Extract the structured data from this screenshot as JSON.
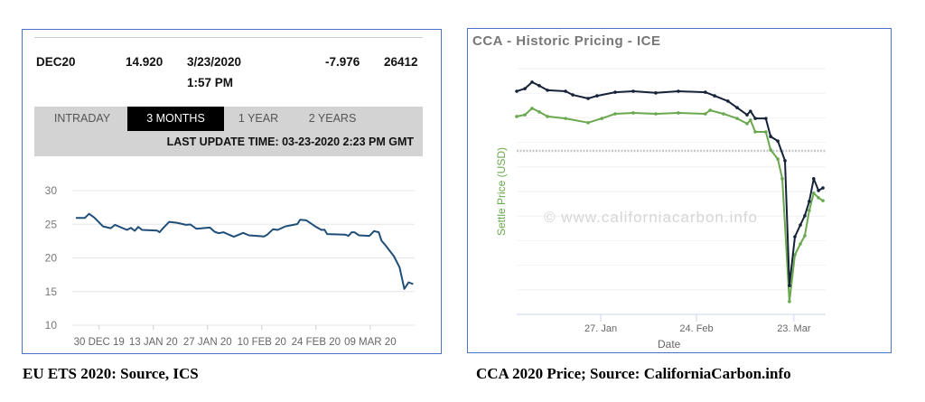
{
  "eu_panel": {
    "quote": {
      "contract": "DEC20",
      "price": "14.920",
      "date": "3/23/2020",
      "time": "1:57 PM",
      "change": "-7.976",
      "volume": "26412"
    },
    "tabs": [
      {
        "label": "INTRADAY",
        "active": false
      },
      {
        "label": "3 MONTHS",
        "active": true
      },
      {
        "label": "1 YEAR",
        "active": false
      },
      {
        "label": "2 YEARS",
        "active": false
      }
    ],
    "last_update": "LAST UPDATE TIME: 03-23-2020 2:23 PM GMT"
  },
  "cca_panel": {
    "title": "CCA - Historic Pricing - ICE",
    "watermark": "© www.californiacarbon.info"
  },
  "captions": {
    "left": "EU ETS 2020: Source, ICS",
    "right": "CCA 2020 Price; Source: CaliforniaCarbon.info"
  },
  "colors": {
    "eu_line": "#1f4e79",
    "cca_dark": "#152238",
    "cca_green": "#6aa84f",
    "border": "#4a72c8"
  },
  "chart_data": [
    {
      "type": "line",
      "title": "",
      "xlabel": "",
      "ylabel": "",
      "x_unit": "days since 30 Dec 2019",
      "ylim": [
        10,
        30
      ],
      "yticks": [
        30,
        25,
        20,
        15,
        10
      ],
      "grid": true,
      "xticks": [
        {
          "day": 0,
          "label": "30 DEC 19"
        },
        {
          "day": 14,
          "label": "13 JAN 20"
        },
        {
          "day": 28,
          "label": "27 JAN 20"
        },
        {
          "day": 42,
          "label": "10 FEB 20"
        },
        {
          "day": 56,
          "label": "24 FEB 20"
        },
        {
          "day": 70,
          "label": "09 MAR 20"
        }
      ],
      "xlim": [
        -6,
        81
      ],
      "series": [
        {
          "name": "DEC20",
          "points": [
            [
              -6,
              25.93
            ],
            [
              -3.7,
              25.93
            ],
            [
              -2.6,
              26.55
            ],
            [
              -1.3,
              26.02
            ],
            [
              1,
              24.69
            ],
            [
              3,
              24.42
            ],
            [
              4.1,
              24.91
            ],
            [
              7.2,
              24.16
            ],
            [
              8.2,
              24.47
            ],
            [
              9.2,
              24.03
            ],
            [
              10.1,
              24.6
            ],
            [
              11.1,
              24.16
            ],
            [
              15,
              24.07
            ],
            [
              15.6,
              23.81
            ],
            [
              16.6,
              24.47
            ],
            [
              18.1,
              25.35
            ],
            [
              20.1,
              25.22
            ],
            [
              22.4,
              24.91
            ],
            [
              23.6,
              24.96
            ],
            [
              25.1,
              24.34
            ],
            [
              28.6,
              24.51
            ],
            [
              29.8,
              23.89
            ],
            [
              30.9,
              23.67
            ],
            [
              32.1,
              23.81
            ],
            [
              34.8,
              23.14
            ],
            [
              37.2,
              23.72
            ],
            [
              38.7,
              23.36
            ],
            [
              42.6,
              23.19
            ],
            [
              43.4,
              23.45
            ],
            [
              44.9,
              24.25
            ],
            [
              46.1,
              24.16
            ],
            [
              48.1,
              24.69
            ],
            [
              51.2,
              25.04
            ],
            [
              51.9,
              25.66
            ],
            [
              53.5,
              25.58
            ],
            [
              55.8,
              24.69
            ],
            [
              57.4,
              24.16
            ],
            [
              58.2,
              24.2
            ],
            [
              58.9,
              23.54
            ],
            [
              63.6,
              23.45
            ],
            [
              64.4,
              23.27
            ],
            [
              65.2,
              23.81
            ],
            [
              65.9,
              23.81
            ],
            [
              67.1,
              23.36
            ],
            [
              69.8,
              23.27
            ],
            [
              71,
              23.98
            ],
            [
              72.2,
              23.81
            ],
            [
              72.9,
              22.57
            ],
            [
              73.7,
              22.04
            ],
            [
              76.1,
              20.27
            ],
            [
              77.6,
              18.58
            ],
            [
              78.8,
              15.4
            ],
            [
              79.9,
              16.37
            ],
            [
              81.1,
              16.11
            ]
          ]
        }
      ]
    },
    {
      "type": "line",
      "title": "CCA - Historic Pricing - ICE",
      "xlabel": "Date",
      "ylabel": "Settle Price (USD)",
      "x_unit": "day of year 2020 (Jan 1 = 0)",
      "ylim": [
        12,
        19.5
      ],
      "grid": true,
      "xticks": [
        {
          "day": 26,
          "label": "27. Jan"
        },
        {
          "day": 54,
          "label": "24. Feb"
        },
        {
          "day": 82.5,
          "label": "23. Mar"
        }
      ],
      "xlim": [
        1.4,
        91
      ],
      "reference_line": 16.99,
      "series": [
        {
          "name": "dark",
          "points": [
            [
              1.4,
              18.81
            ],
            [
              3.8,
              18.89
            ],
            [
              5.9,
              19.09
            ],
            [
              8,
              18.98
            ],
            [
              10.4,
              18.84
            ],
            [
              15.7,
              18.81
            ],
            [
              17.8,
              18.7
            ],
            [
              22.3,
              18.59
            ],
            [
              24.9,
              18.67
            ],
            [
              30.2,
              18.78
            ],
            [
              35.5,
              18.81
            ],
            [
              42.1,
              18.76
            ],
            [
              48.7,
              18.81
            ],
            [
              56.6,
              18.78
            ],
            [
              59.3,
              18.67
            ],
            [
              63.2,
              18.51
            ],
            [
              65.9,
              18.31
            ],
            [
              68.8,
              18.09
            ],
            [
              69.8,
              18.2
            ],
            [
              71.2,
              17.98
            ],
            [
              74.3,
              17.98
            ],
            [
              75.7,
              17.43
            ],
            [
              77.8,
              17.29
            ],
            [
              79.9,
              16.69
            ],
            [
              81.2,
              12.88
            ],
            [
              82.8,
              14.37
            ],
            [
              84.4,
              14.73
            ],
            [
              85.7,
              15.01
            ],
            [
              87,
              15.45
            ],
            [
              88.3,
              16.14
            ],
            [
              89.7,
              15.78
            ],
            [
              91,
              15.86
            ]
          ]
        },
        {
          "name": "green",
          "points": [
            [
              1.4,
              18.04
            ],
            [
              3.8,
              18.09
            ],
            [
              5.9,
              18.29
            ],
            [
              8,
              18.18
            ],
            [
              10.4,
              18.04
            ],
            [
              15.7,
              17.98
            ],
            [
              22.3,
              17.85
            ],
            [
              26.3,
              17.98
            ],
            [
              30.2,
              18.12
            ],
            [
              35.5,
              18.15
            ],
            [
              42.1,
              18.12
            ],
            [
              48.7,
              18.15
            ],
            [
              56.6,
              18.12
            ],
            [
              58,
              18.23
            ],
            [
              61.9,
              18.12
            ],
            [
              65.9,
              17.98
            ],
            [
              68.8,
              17.82
            ],
            [
              69.8,
              17.93
            ],
            [
              71.2,
              17.57
            ],
            [
              74.3,
              17.57
            ],
            [
              75.7,
              17.02
            ],
            [
              77.8,
              16.74
            ],
            [
              79.1,
              16.14
            ],
            [
              81.2,
              12.39
            ],
            [
              82.8,
              13.82
            ],
            [
              84.4,
              14.15
            ],
            [
              85.7,
              14.4
            ],
            [
              87,
              15.17
            ],
            [
              88.3,
              15.7
            ],
            [
              89.7,
              15.56
            ],
            [
              91,
              15.47
            ]
          ]
        }
      ]
    }
  ]
}
